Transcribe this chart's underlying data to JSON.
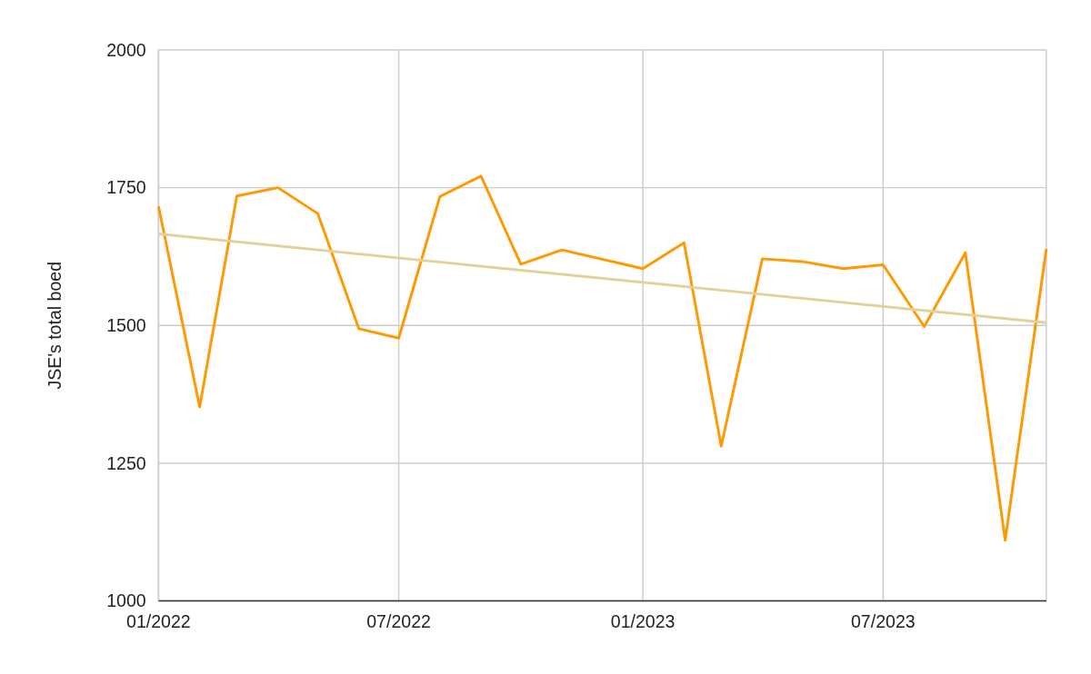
{
  "chart_data": {
    "type": "line",
    "ylabel": "JSE's total boed",
    "xlim": [
      "2022-01",
      "2023-11"
    ],
    "xticks": [
      {
        "value": "2022-01",
        "label": "01/2022"
      },
      {
        "value": "2022-07",
        "label": "07/2022"
      },
      {
        "value": "2023-01",
        "label": "01/2023"
      },
      {
        "value": "2023-07",
        "label": "07/2023"
      }
    ],
    "ylim": [
      1000,
      2000
    ],
    "yticks": [
      1000,
      1250,
      1500,
      1750,
      2000
    ],
    "grid": true,
    "marker": "none",
    "line_style": "solid",
    "series": [
      {
        "color": "#ff9900",
        "x": [
          "2022-01",
          "2022-02",
          "2022-03",
          "2022-04",
          "2022-05",
          "2022-06",
          "2022-07",
          "2022-08",
          "2022-09",
          "2022-10",
          "2022-11",
          "2023-01",
          "2023-02",
          "2023-03",
          "2023-04",
          "2023-05",
          "2023-06",
          "2023-07",
          "2023-08",
          "2023-09",
          "2023-10",
          "2023-11"
        ],
        "values": [
          1716,
          1352,
          1735,
          1750,
          1703,
          1494,
          1477,
          1734,
          1771,
          1611,
          1637,
          1603,
          1650,
          1281,
          1621,
          1616,
          1603,
          1610,
          1498,
          1632,
          1110,
          1639
        ]
      },
      {
        "color": "#e0d29a",
        "x": [
          "2022-01",
          "2023-11"
        ],
        "values": [
          1666,
          1505
        ]
      }
    ]
  }
}
